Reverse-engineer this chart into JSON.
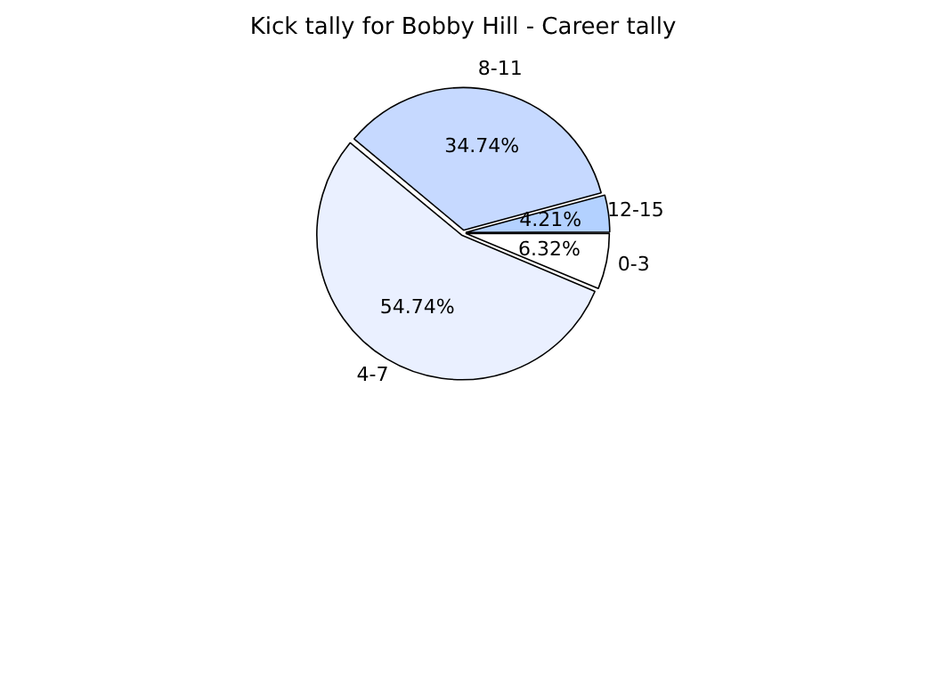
{
  "chart_data": {
    "type": "pie",
    "title": "Kick tally for Bobby Hill - Career tally",
    "categories": [
      "0-3",
      "4-7",
      "8-11",
      "12-15"
    ],
    "values": [
      6.32,
      54.74,
      34.74,
      4.21
    ],
    "value_labels": [
      "6.32%",
      "54.74%",
      "34.74%",
      "4.21%"
    ],
    "colors": [
      "#ffffff",
      "#eaf0ff",
      "#c6d9ff",
      "#b3d1ff"
    ],
    "legend": false
  }
}
